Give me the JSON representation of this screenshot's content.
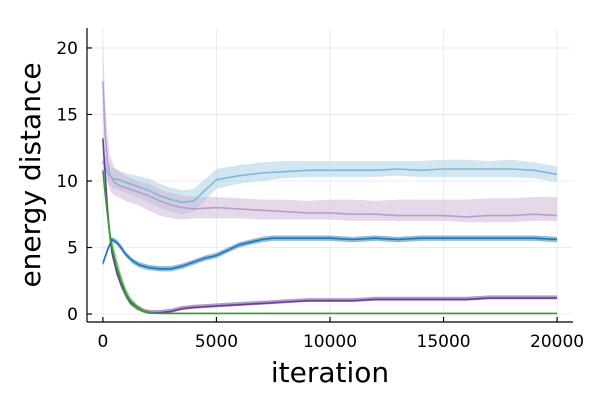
{
  "chart_data": {
    "type": "line",
    "title": "",
    "xlabel": "iteration",
    "ylabel": "energy distance",
    "xlim": [
      -700,
      20700
    ],
    "ylim": [
      -0.6,
      21.5
    ],
    "xticks": [
      0,
      5000,
      10000,
      15000,
      20000
    ],
    "xtick_labels": [
      "0",
      "5000",
      "10000",
      "15000",
      "20000"
    ],
    "yticks": [
      0,
      5,
      10,
      15,
      20
    ],
    "ytick_labels": [
      "0",
      "5",
      "10",
      "15",
      "20"
    ],
    "grid": true,
    "legend": "none",
    "series": [
      {
        "color": "#a6cee3",
        "line_color": "#7fb9d6",
        "x": [
          0,
          200,
          400,
          700,
          1000,
          1500,
          2000,
          2500,
          3000,
          3500,
          4000,
          5000,
          6000,
          7000,
          8000,
          9000,
          10000,
          11000,
          12000,
          13000,
          14000,
          15000,
          16000,
          17000,
          18000,
          19000,
          20000
        ],
        "y": [
          11.5,
          10.6,
          10.2,
          10.1,
          9.9,
          9.6,
          9.3,
          8.9,
          8.6,
          8.4,
          8.5,
          10.1,
          10.4,
          10.6,
          10.7,
          10.8,
          10.8,
          10.8,
          10.8,
          10.9,
          10.8,
          10.9,
          10.9,
          10.9,
          10.9,
          10.8,
          10.5
        ],
        "lower": [
          10.5,
          9.9,
          9.5,
          9.3,
          9.1,
          8.8,
          8.4,
          8.0,
          7.7,
          7.5,
          7.7,
          9.4,
          9.8,
          10.0,
          10.2,
          10.3,
          10.3,
          10.3,
          10.3,
          10.4,
          10.3,
          10.3,
          10.3,
          10.3,
          10.3,
          10.2,
          9.9
        ],
        "upper": [
          12.4,
          11.4,
          11.0,
          10.8,
          10.6,
          10.4,
          10.2,
          9.8,
          9.5,
          9.3,
          9.4,
          10.9,
          11.2,
          11.4,
          11.5,
          11.5,
          11.5,
          11.5,
          11.5,
          11.5,
          11.5,
          11.6,
          11.6,
          11.5,
          11.6,
          11.4,
          11.1
        ]
      },
      {
        "color": "#cab2d6",
        "line_color": "#b89fc9",
        "x": [
          0,
          100,
          200,
          300,
          500,
          800,
          1000,
          1500,
          2000,
          2500,
          3000,
          3500,
          4000,
          5000,
          6000,
          7000,
          8000,
          9000,
          10000,
          11000,
          12000,
          13000,
          14000,
          15000,
          16000,
          17000,
          18000,
          19000,
          20000
        ],
        "y": [
          17.5,
          13.5,
          11.5,
          10.5,
          9.9,
          9.6,
          9.5,
          9.2,
          8.9,
          8.5,
          8.2,
          8.0,
          7.9,
          8.0,
          7.9,
          7.8,
          7.7,
          7.6,
          7.6,
          7.5,
          7.5,
          7.4,
          7.4,
          7.4,
          7.3,
          7.4,
          7.4,
          7.5,
          7.4
        ],
        "lower": [
          14.5,
          11.5,
          10.0,
          9.3,
          8.9,
          8.7,
          8.5,
          8.2,
          7.8,
          7.4,
          7.2,
          7.1,
          7.2,
          7.2,
          7.2,
          7.1,
          7.1,
          7.1,
          7.1,
          7.0,
          7.0,
          7.0,
          7.0,
          7.0,
          6.9,
          6.9,
          6.9,
          7.0,
          7.0
        ],
        "upper": [
          20.6,
          16.0,
          13.5,
          12.0,
          11.0,
          10.6,
          10.4,
          10.0,
          9.8,
          9.4,
          9.1,
          8.9,
          8.8,
          8.8,
          8.7,
          8.6,
          8.6,
          8.5,
          8.6,
          8.6,
          8.5,
          8.6,
          8.6,
          8.6,
          8.6,
          8.7,
          8.7,
          8.8,
          8.8
        ]
      },
      {
        "color": "#1f78b4",
        "line_color": "#1f78b4",
        "x": [
          0,
          200,
          400,
          600,
          800,
          1000,
          1300,
          1600,
          2000,
          2500,
          3000,
          3500,
          4000,
          4500,
          5000,
          5500,
          6000,
          6500,
          7000,
          7500,
          8000,
          9000,
          10000,
          11000,
          12000,
          13000,
          14000,
          15000,
          16000,
          17000,
          18000,
          19000,
          20000
        ],
        "y": [
          3.8,
          4.8,
          5.6,
          5.4,
          5.0,
          4.5,
          4.0,
          3.7,
          3.5,
          3.4,
          3.4,
          3.6,
          3.9,
          4.2,
          4.4,
          4.8,
          5.2,
          5.4,
          5.6,
          5.7,
          5.7,
          5.7,
          5.7,
          5.6,
          5.7,
          5.6,
          5.7,
          5.7,
          5.7,
          5.7,
          5.7,
          5.7,
          5.6
        ],
        "lower": [
          3.6,
          4.6,
          5.4,
          5.2,
          4.8,
          4.3,
          3.8,
          3.5,
          3.3,
          3.2,
          3.2,
          3.4,
          3.7,
          4.0,
          4.2,
          4.6,
          5.0,
          5.2,
          5.4,
          5.5,
          5.5,
          5.5,
          5.5,
          5.4,
          5.5,
          5.4,
          5.5,
          5.5,
          5.5,
          5.5,
          5.5,
          5.5,
          5.4
        ],
        "upper": [
          4.0,
          5.0,
          5.8,
          5.6,
          5.2,
          4.7,
          4.2,
          3.9,
          3.7,
          3.6,
          3.6,
          3.8,
          4.1,
          4.4,
          4.6,
          5.0,
          5.4,
          5.6,
          5.8,
          5.9,
          5.9,
          5.9,
          5.9,
          5.8,
          5.9,
          5.8,
          5.9,
          5.9,
          5.9,
          5.9,
          5.9,
          5.9,
          5.8
        ]
      },
      {
        "color": "#6a3d9a",
        "line_color": "#6a3d9a",
        "x": [
          0,
          100,
          200,
          300,
          400,
          600,
          800,
          1000,
          1200,
          1500,
          1800,
          2100,
          2500,
          3000,
          3500,
          4000,
          5000,
          6000,
          7000,
          8000,
          9000,
          10000,
          11000,
          12000,
          13000,
          14000,
          15000,
          16000,
          17000,
          18000,
          19000,
          20000
        ],
        "y": [
          13.2,
          10.5,
          8.0,
          6.0,
          4.6,
          3.2,
          2.2,
          1.5,
          0.9,
          0.5,
          0.2,
          0.1,
          0.1,
          0.2,
          0.4,
          0.5,
          0.6,
          0.7,
          0.8,
          0.9,
          1.0,
          1.0,
          1.0,
          1.1,
          1.1,
          1.1,
          1.1,
          1.1,
          1.2,
          1.2,
          1.2,
          1.2
        ],
        "lower": [
          12.8,
          10.0,
          7.6,
          5.7,
          4.3,
          2.9,
          2.0,
          1.3,
          0.7,
          0.3,
          0.1,
          0.0,
          0.0,
          0.1,
          0.3,
          0.4,
          0.5,
          0.6,
          0.7,
          0.8,
          0.9,
          0.9,
          0.9,
          1.0,
          1.0,
          1.0,
          1.0,
          1.0,
          1.1,
          1.1,
          1.1,
          1.1
        ],
        "upper": [
          13.6,
          11.0,
          8.4,
          6.3,
          4.9,
          3.5,
          2.4,
          1.7,
          1.1,
          0.7,
          0.4,
          0.3,
          0.3,
          0.4,
          0.6,
          0.7,
          0.8,
          0.9,
          1.0,
          1.1,
          1.2,
          1.2,
          1.2,
          1.3,
          1.3,
          1.3,
          1.3,
          1.3,
          1.4,
          1.4,
          1.4,
          1.4
        ]
      },
      {
        "color": "#33a02c",
        "line_color": "#33a02c",
        "x": [
          0,
          100,
          200,
          300,
          400,
          600,
          800,
          1000,
          1200,
          1500,
          1800,
          2000,
          2500,
          3000,
          4000,
          5000,
          6000,
          8000,
          10000,
          12000,
          14000,
          16000,
          18000,
          20000
        ],
        "y": [
          10.8,
          9.0,
          7.5,
          6.0,
          5.0,
          3.6,
          2.5,
          1.6,
          1.0,
          0.5,
          0.2,
          0.1,
          0.05,
          0.05,
          0.05,
          0.05,
          0.05,
          0.05,
          0.05,
          0.05,
          0.05,
          0.05,
          0.05,
          0.05
        ],
        "lower": [
          10.6,
          8.7,
          7.1,
          5.5,
          4.4,
          3.0,
          2.0,
          1.2,
          0.7,
          0.3,
          0.1,
          0.0,
          0.0,
          0.0,
          0.0,
          0.0,
          0.0,
          0.0,
          0.0,
          0.0,
          0.0,
          0.0,
          0.0,
          0.0
        ],
        "upper": [
          11.0,
          9.3,
          7.9,
          6.5,
          5.6,
          4.2,
          3.0,
          2.0,
          1.3,
          0.7,
          0.35,
          0.2,
          0.1,
          0.1,
          0.1,
          0.1,
          0.1,
          0.1,
          0.1,
          0.1,
          0.1,
          0.1,
          0.1,
          0.1
        ]
      }
    ]
  }
}
